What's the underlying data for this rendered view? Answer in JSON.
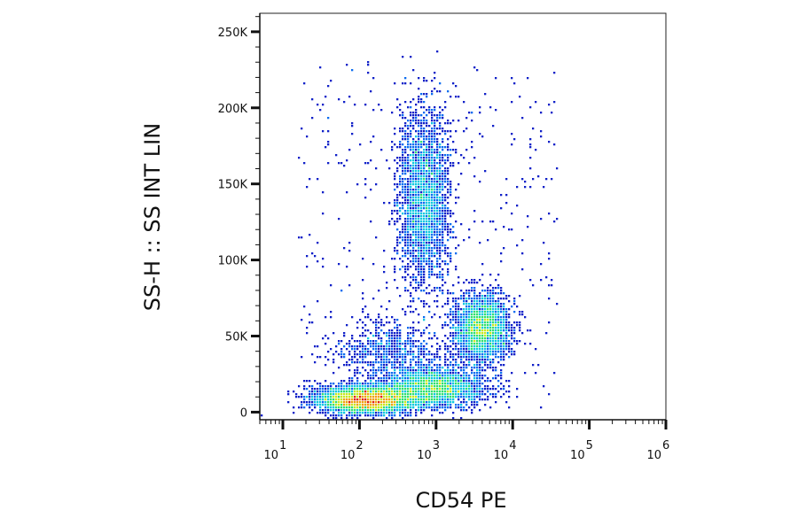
{
  "chart_data": {
    "type": "scatter",
    "subtype": "flow-cytometry density dot plot",
    "xlabel": "CD54 PE",
    "ylabel": "SS-H :: SS INT LIN",
    "x_scale": "log",
    "x_range": [
      5,
      1000000
    ],
    "y_range": [
      -5000,
      262144
    ],
    "x_ticks": [
      {
        "value": 10,
        "base": "10",
        "exp": "1"
      },
      {
        "value": 100,
        "base": "10",
        "exp": "2"
      },
      {
        "value": 1000,
        "base": "10",
        "exp": "3"
      },
      {
        "value": 10000,
        "base": "10",
        "exp": "4"
      },
      {
        "value": 100000,
        "base": "10",
        "exp": "5"
      },
      {
        "value": 1000000,
        "base": "10",
        "exp": "6"
      }
    ],
    "y_ticks": [
      {
        "value": 0,
        "label": "0"
      },
      {
        "value": 50000,
        "label": "50K"
      },
      {
        "value": 100000,
        "label": "100K"
      },
      {
        "value": 150000,
        "label": "150K"
      },
      {
        "value": 200000,
        "label": "200K"
      },
      {
        "value": 250000,
        "label": "250K"
      }
    ],
    "grid": false,
    "legend": "none",
    "color_scale": [
      "#1020c8",
      "#0a6cf0",
      "#10c8e0",
      "#30e070",
      "#c8e820",
      "#f0a010",
      "#e02010"
    ],
    "populations": [
      {
        "x_center": 120,
        "y_center": 8000,
        "x_spread_decades": 0.32,
        "y_spread": 4500,
        "density": "high"
      },
      {
        "x_center": 900,
        "y_center": 16000,
        "x_spread_decades": 0.33,
        "y_spread": 6500,
        "density": "medium"
      },
      {
        "x_center": 700,
        "y_center": 140000,
        "x_spread_decades": 0.17,
        "y_spread": 30000,
        "density": "medium"
      },
      {
        "x_center": 4000,
        "y_center": 55000,
        "x_spread_decades": 0.18,
        "y_spread": 11000,
        "density": "medium"
      },
      {
        "x_center": 250,
        "y_center": 40000,
        "x_spread_decades": 0.35,
        "y_spread": 10000,
        "density": "low"
      }
    ]
  }
}
